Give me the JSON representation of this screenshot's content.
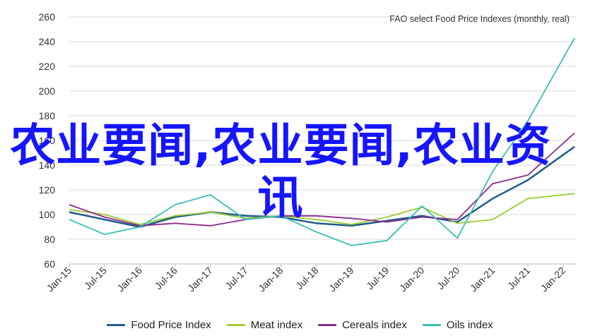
{
  "chart_data": {
    "type": "line",
    "title": "",
    "source_note": "FAO select Food Price Indexes (monthly, real)",
    "xlabel": "",
    "ylabel": "",
    "ylim": [
      60,
      260
    ],
    "yticks": [
      "60",
      "80",
      "100",
      "120",
      "140",
      "160",
      "180",
      "200",
      "220",
      "240",
      "260"
    ],
    "xticks": [
      "Jan-15",
      "Jul-15",
      "Jan-16",
      "Jul-16",
      "Jan-17",
      "Jul-17",
      "Jan-18",
      "Jul-18",
      "Jan-19",
      "Jul-19",
      "Jan-20",
      "Jul-20",
      "Jan-21",
      "Jul-21",
      "Jan-22"
    ],
    "grid": "horizontal",
    "legend_position": "bottom",
    "series": [
      {
        "name": "Food Price Index",
        "color": "#1f5c8a",
        "x": [
          "Jan-15",
          "Jul-15",
          "Jan-16",
          "Jul-16",
          "Jan-17",
          "Jul-17",
          "Jan-18",
          "Jul-18",
          "Jan-19",
          "Jul-19",
          "Jan-20",
          "Jul-20",
          "Jan-21",
          "Jul-21",
          "Jan-22"
        ],
        "values": [
          102,
          96,
          90,
          98,
          102,
          99,
          98,
          93,
          91,
          95,
          99,
          94,
          113,
          128,
          155
        ]
      },
      {
        "name": "Meat index",
        "color": "#9acd32",
        "x": [
          "Jan-15",
          "Jul-15",
          "Jan-16",
          "Jul-16",
          "Jan-17",
          "Jul-17",
          "Jan-18",
          "Jul-18",
          "Jan-19",
          "Jul-19",
          "Jan-20",
          "Jul-20",
          "Jan-21",
          "Jul-21",
          "Jan-22"
        ],
        "values": [
          104,
          100,
          92,
          99,
          102,
          97,
          99,
          96,
          92,
          98,
          106,
          93,
          96,
          113,
          117
        ]
      },
      {
        "name": "Cereals index",
        "color": "#8b2a8b",
        "x": [
          "Jan-15",
          "Jul-15",
          "Jan-16",
          "Jul-16",
          "Jan-17",
          "Jul-17",
          "Jan-18",
          "Jul-18",
          "Jan-19",
          "Jul-19",
          "Jan-20",
          "Jul-20",
          "Jan-21",
          "Jul-21",
          "Jan-22"
        ],
        "values": [
          108,
          98,
          91,
          93,
          91,
          96,
          99,
          99,
          97,
          94,
          98,
          96,
          125,
          132,
          166
        ]
      },
      {
        "name": "Oils index",
        "color": "#3bbfb7",
        "x": [
          "Jan-15",
          "Jul-15",
          "Jan-16",
          "Jul-16",
          "Jan-17",
          "Jul-17",
          "Jan-18",
          "Jul-18",
          "Jan-19",
          "Jul-19",
          "Jan-20",
          "Jul-20",
          "Jan-21",
          "Jul-21",
          "Jan-22"
        ],
        "values": [
          96,
          84,
          90,
          108,
          116,
          96,
          99,
          86,
          75,
          79,
          107,
          81,
          135,
          176,
          243
        ]
      }
    ]
  },
  "overlay_text": "农业要闻,农业要闻,农业资讯"
}
